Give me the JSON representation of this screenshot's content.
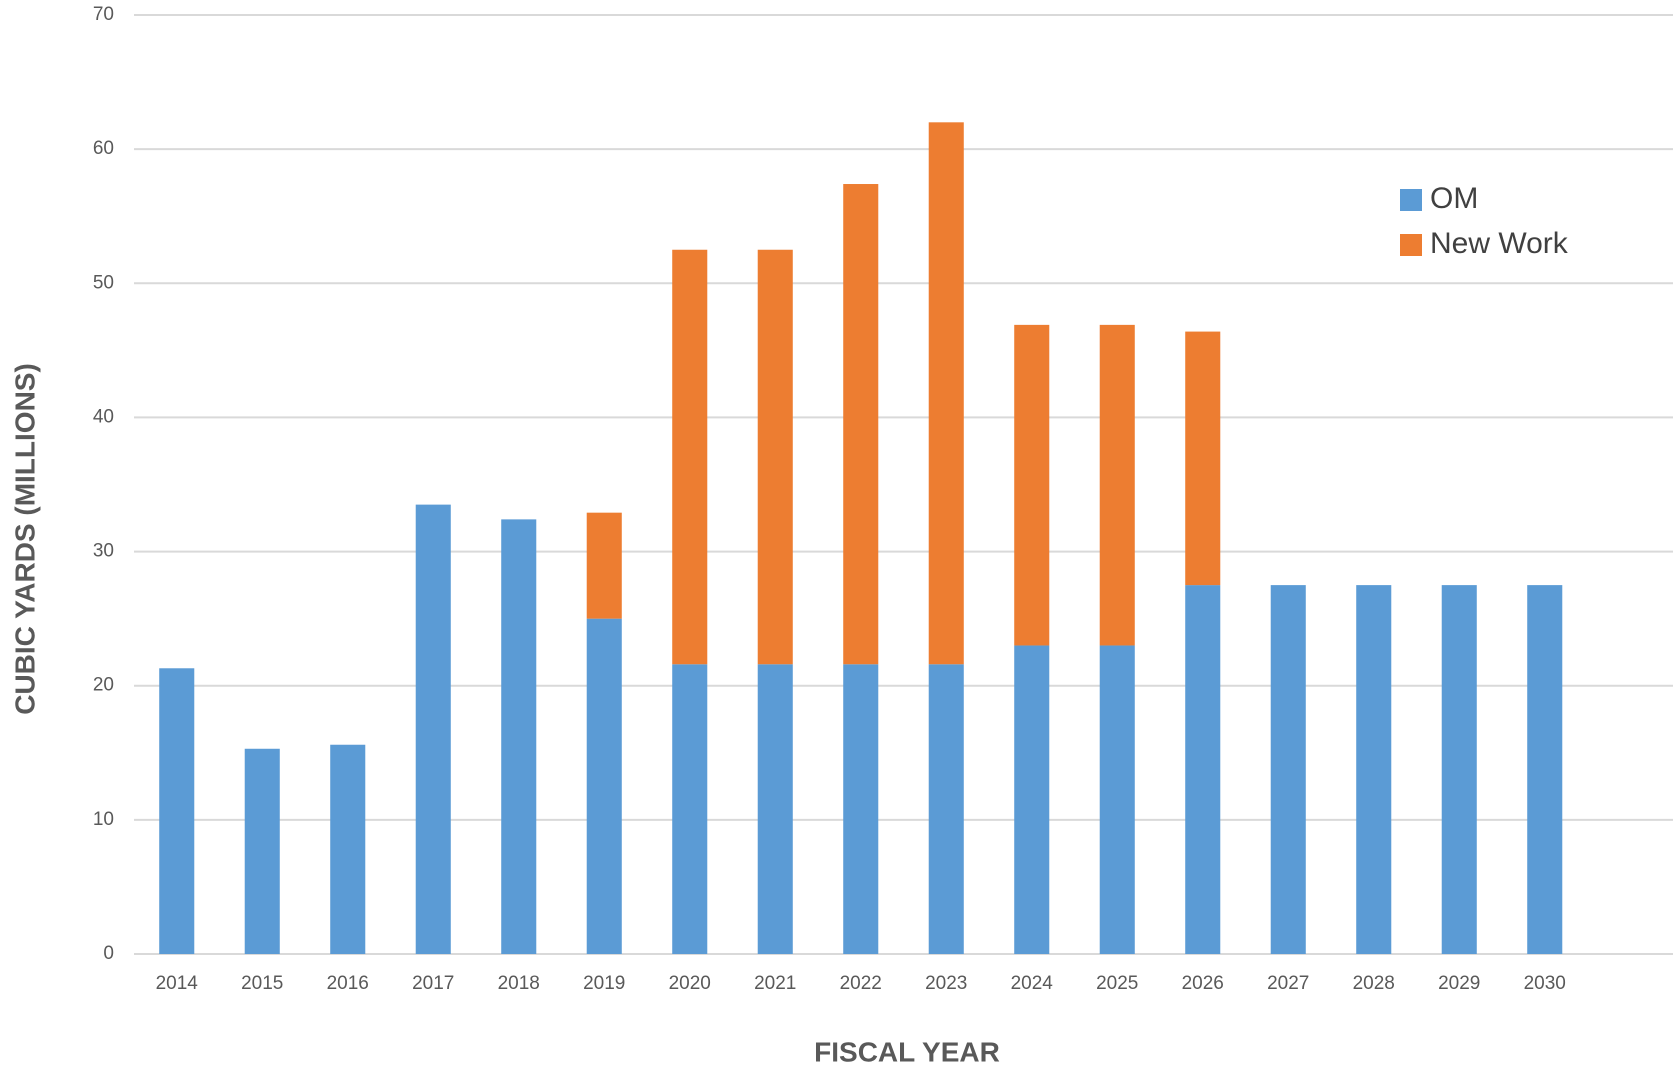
{
  "chart_data": {
    "type": "stacked_bar",
    "categories": [
      "2014",
      "2015",
      "2016",
      "2017",
      "2018",
      "2019",
      "2020",
      "2021",
      "2022",
      "2023",
      "2024",
      "2025",
      "2026",
      "2027",
      "2028",
      "2029",
      "2030"
    ],
    "series": [
      {
        "name": "OM",
        "color": "#5b9bd5",
        "values": [
          21.3,
          15.3,
          15.6,
          33.5,
          32.4,
          25.0,
          21.6,
          21.6,
          21.6,
          21.6,
          23.0,
          23.0,
          27.5,
          27.5,
          27.5,
          27.5,
          27.5
        ]
      },
      {
        "name": "New Work",
        "color": "#ed7d31",
        "values": [
          0,
          0,
          0,
          0,
          0,
          7.9,
          30.9,
          30.9,
          35.8,
          40.4,
          23.9,
          23.9,
          18.9,
          0,
          0,
          0,
          0
        ]
      }
    ],
    "xlabel": "FISCAL YEAR",
    "ylabel": "CUBIC YARDS (MILLIONS)",
    "ylim": [
      0,
      70
    ],
    "yticks": [
      0,
      10,
      20,
      30,
      40,
      50,
      60,
      70
    ],
    "grid": true,
    "legend": "upper right"
  }
}
